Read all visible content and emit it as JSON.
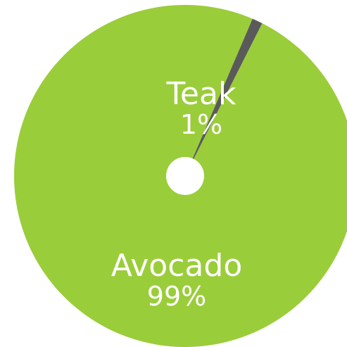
{
  "chart_data": {
    "type": "pie",
    "style": "donut-small-hole",
    "categories": [
      "Teak",
      "Avocado"
    ],
    "values": [
      1,
      99
    ],
    "value_labels": [
      "1%",
      "99%"
    ],
    "colors": [
      "#5a5a5a",
      "#9acd3a"
    ],
    "start_angle_deg": 0,
    "title": "",
    "legend": "none",
    "label_color": "#ffffff",
    "hole_color": "#ffffff"
  }
}
